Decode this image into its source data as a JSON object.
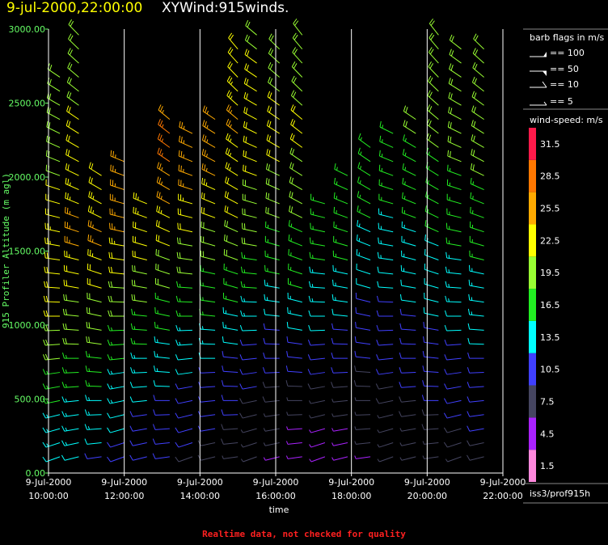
{
  "header": {
    "datetime": "9-jul-2000,22:00:00",
    "product": "XYWind:915winds."
  },
  "footer": {
    "warning": "Realtime data, not checked for quality"
  },
  "legend": {
    "flags_title": "barb flags in m/s",
    "flags": [
      "== 100",
      "== 50",
      "== 10",
      "== 5"
    ],
    "speed_title": "wind-speed: m/s",
    "source": "iss3/prof915h"
  },
  "colors": {
    "background": "#000000",
    "axis_text": "#66ff66",
    "grid": "#ffffff",
    "title_date": "#ffff00",
    "warning": "#ff2020"
  },
  "chart_data": {
    "type": "wind-barb profile",
    "xlabel": "time",
    "ylabel": "915 Profiler Altitude (m agl)",
    "ylim": [
      0,
      3000
    ],
    "y_ticks": [
      "0.00",
      "500.00",
      "1000.00",
      "1500.00",
      "2000.00",
      "2500.00",
      "3000.00"
    ],
    "x_ticks": [
      {
        "date": "9-Jul-2000",
        "time": "10:00:00"
      },
      {
        "date": "9-Jul-2000",
        "time": "12:00:00"
      },
      {
        "date": "9-Jul-2000",
        "time": "14:00:00"
      },
      {
        "date": "9-Jul-2000",
        "time": "16:00:00"
      },
      {
        "date": "9-Jul-2000",
        "time": "18:00:00"
      },
      {
        "date": "9-Jul-2000",
        "time": "20:00:00"
      },
      {
        "date": "9-Jul-2000",
        "time": "22:00:00"
      }
    ],
    "x_range_hours": [
      10,
      22
    ],
    "grid": "vertical lines at each labeled time",
    "colorbar": [
      {
        "label": "1.5",
        "color": "#ff88dd"
      },
      {
        "label": "4.5",
        "color": "#aa22ff"
      },
      {
        "label": "7.5",
        "color": "#454560"
      },
      {
        "label": "10.5",
        "color": "#4040ff"
      },
      {
        "label": "13.5",
        "color": "#00ffff"
      },
      {
        "label": "16.5",
        "color": "#22ee22"
      },
      {
        "label": "19.5",
        "color": "#99ff33"
      },
      {
        "label": "22.5",
        "color": "#ffff00"
      },
      {
        "label": "25.5",
        "color": "#ffaa00"
      },
      {
        "label": "28.5",
        "color": "#ff7700"
      },
      {
        "label": "31.5",
        "color": "#ff1a4a"
      }
    ],
    "profiles": [
      {
        "time": 10.3,
        "top": 2680,
        "speeds": [
          12,
          12.5,
          13,
          14,
          15,
          16,
          17,
          18,
          19,
          20,
          21,
          21,
          22,
          22,
          22,
          23,
          23,
          22,
          21,
          21,
          20,
          20,
          20,
          20,
          19,
          19,
          19,
          20,
          20,
          21,
          21
        ]
      },
      {
        "time": 10.8,
        "top": 2980,
        "speeds": [
          12,
          12.5,
          13,
          13.5,
          14,
          15,
          16,
          17,
          18,
          18,
          19,
          20,
          21,
          22,
          23,
          24,
          24,
          24,
          23,
          23,
          22,
          22,
          21,
          21,
          21,
          20,
          20,
          20,
          20,
          20,
          20
        ]
      },
      {
        "time": 11.4,
        "top": 2050,
        "speeds": [
          11,
          12,
          13,
          13,
          14,
          15,
          16,
          17,
          18,
          19,
          19,
          20,
          21,
          22,
          23,
          24,
          24,
          23,
          23,
          22,
          22
        ]
      },
      {
        "time": 12.0,
        "top": 2200,
        "speeds": [
          10,
          11,
          12,
          12,
          13,
          13,
          14,
          15,
          16,
          17,
          18,
          19,
          20,
          21,
          22,
          23,
          24,
          24,
          25,
          25,
          25,
          24
        ]
      },
      {
        "time": 12.6,
        "top": 1950,
        "speeds": [
          9,
          10,
          11,
          11,
          12,
          12,
          13,
          14,
          15,
          16,
          17,
          18,
          19,
          20,
          21,
          22,
          22,
          23,
          23
        ]
      },
      {
        "time": 13.2,
        "top": 2500,
        "speeds": [
          9,
          10,
          10,
          11,
          11,
          12,
          13,
          14,
          14,
          15,
          16,
          17,
          18,
          19,
          20,
          21,
          22,
          23,
          24,
          25,
          26,
          27,
          27,
          27,
          26
        ]
      },
      {
        "time": 13.8,
        "top": 2380,
        "speeds": [
          8,
          9,
          10,
          10,
          11,
          11,
          12,
          12,
          13,
          14,
          15,
          16,
          17,
          18,
          19,
          20,
          21,
          22,
          23,
          24,
          25,
          26,
          26,
          26
        ]
      },
      {
        "time": 14.4,
        "top": 2420,
        "speeds": [
          8,
          8,
          9,
          9,
          10,
          10,
          11,
          12,
          13,
          14,
          15,
          16,
          17,
          17,
          18,
          19,
          20,
          21,
          22,
          23,
          24,
          24,
          25,
          25,
          24
        ]
      },
      {
        "time": 15.0,
        "top": 2900,
        "speeds": [
          7,
          8,
          8,
          9,
          9,
          10,
          10,
          11,
          12,
          13,
          14,
          15,
          16,
          17,
          18,
          19,
          20,
          21,
          21,
          22,
          23,
          23,
          23,
          24,
          24,
          23,
          23,
          22,
          22,
          21
        ]
      },
      {
        "time": 15.5,
        "top": 2980,
        "speeds": [
          6,
          7,
          7,
          8,
          8,
          9,
          10,
          10,
          11,
          12,
          13,
          14,
          15,
          16,
          17,
          18,
          19,
          19,
          20,
          20,
          21,
          21,
          22,
          22,
          22,
          22,
          21,
          21,
          21,
          20,
          20
        ]
      },
      {
        "time": 16.1,
        "top": 2950,
        "speeds": [
          5,
          6,
          6,
          7,
          8,
          8,
          9,
          10,
          11,
          11,
          12,
          13,
          14,
          15,
          16,
          17,
          17,
          18,
          19,
          20,
          20,
          21,
          21,
          21,
          21,
          21,
          20,
          20,
          20,
          19
        ]
      },
      {
        "time": 16.7,
        "top": 2980,
        "speeds": [
          3,
          4,
          5,
          6,
          7,
          8,
          9,
          10,
          11,
          12,
          13,
          14,
          15,
          15,
          16,
          16,
          17,
          18,
          18,
          19,
          20,
          20,
          21,
          21,
          21,
          20,
          20,
          20,
          19,
          19,
          19
        ]
      },
      {
        "time": 17.3,
        "top": 1900,
        "speeds": [
          4,
          5,
          5,
          6,
          7,
          8,
          9,
          10,
          11,
          12,
          12,
          13,
          14,
          14,
          15,
          16,
          16,
          17,
          17
        ]
      },
      {
        "time": 17.9,
        "top": 2150,
        "speeds": [
          3,
          4,
          5,
          6,
          7,
          8,
          9,
          10,
          11,
          11,
          12,
          13,
          14,
          14,
          15,
          15,
          16,
          16,
          17,
          17,
          17
        ]
      },
      {
        "time": 18.5,
        "top": 2280,
        "speeds": [
          5,
          6,
          6,
          7,
          7,
          8,
          8,
          9,
          10,
          10,
          11,
          11,
          12,
          12,
          13,
          14,
          14,
          15,
          15,
          16,
          16,
          17,
          17
        ]
      },
      {
        "time": 19.1,
        "top": 2350,
        "speeds": [
          6,
          6,
          7,
          7,
          8,
          8,
          9,
          9,
          10,
          10,
          11,
          11,
          12,
          12,
          13,
          13,
          14,
          14,
          15,
          15,
          16,
          16,
          17,
          17
        ]
      },
      {
        "time": 19.7,
        "top": 2450,
        "speeds": [
          6,
          7,
          7,
          8,
          8,
          9,
          9,
          10,
          10,
          11,
          11,
          12,
          12,
          13,
          13,
          14,
          14,
          15,
          15,
          16,
          16,
          17,
          17,
          18,
          18
        ]
      },
      {
        "time": 20.3,
        "top": 2980,
        "speeds": [
          7,
          7,
          8,
          8,
          9,
          9,
          10,
          10,
          11,
          11,
          12,
          12,
          13,
          13,
          14,
          14,
          15,
          15,
          16,
          16,
          17,
          17,
          18,
          18,
          19,
          19,
          19,
          20,
          20,
          20,
          20
        ]
      },
      {
        "time": 20.9,
        "top": 2950,
        "speeds": [
          7,
          8,
          8,
          9,
          9,
          10,
          10,
          11,
          11,
          12,
          12,
          13,
          13,
          14,
          14,
          15,
          15,
          16,
          16,
          17,
          17,
          18,
          18,
          19,
          19,
          19,
          20,
          20,
          20,
          20
        ]
      },
      {
        "time": 21.5,
        "top": 2950,
        "speeds": [
          8,
          8,
          9,
          9,
          10,
          10,
          11,
          11,
          12,
          12,
          13,
          13,
          14,
          14,
          15,
          15,
          16,
          16,
          17,
          17,
          18,
          18,
          19,
          19,
          19,
          20,
          20,
          20,
          20,
          20
        ]
      }
    ]
  }
}
